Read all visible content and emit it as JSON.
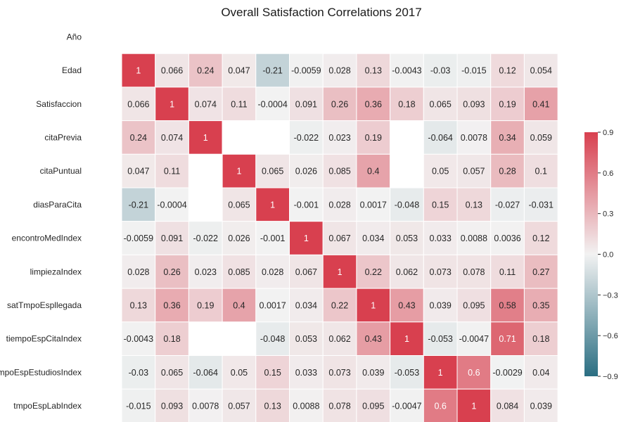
{
  "chart_data": {
    "type": "heatmap",
    "title": "Overall Satisfaction Correlations 2017",
    "rows": [
      "Año",
      "Edad",
      "Satisfaccion",
      "citaPrevia",
      "citaPuntual",
      "diasParaCita",
      "encontroMedIndex",
      "limpiezaIndex",
      "satTmpoEspllegada",
      "tiempoEspCitaIndex",
      "tmpoEspEstudiosIndex",
      "tmpoEspLabIndex"
    ],
    "values": [
      [
        null,
        null,
        null,
        null,
        null,
        null,
        null,
        null,
        null,
        null,
        null,
        null,
        null
      ],
      [
        1,
        0.066,
        0.24,
        0.047,
        -0.21,
        -0.0059,
        0.028,
        0.13,
        -0.0043,
        -0.03,
        -0.015,
        0.12,
        0.054
      ],
      [
        0.066,
        1,
        0.074,
        0.11,
        -0.0004,
        0.091,
        0.26,
        0.36,
        0.18,
        0.065,
        0.093,
        0.19,
        0.41
      ],
      [
        0.24,
        0.074,
        1,
        null,
        null,
        -0.022,
        0.023,
        0.19,
        null,
        -0.064,
        0.0078,
        0.34,
        0.059
      ],
      [
        0.047,
        0.11,
        null,
        1,
        0.065,
        0.026,
        0.085,
        0.4,
        null,
        0.05,
        0.057,
        0.28,
        0.1
      ],
      [
        -0.21,
        -0.0004,
        null,
        0.065,
        1,
        -0.001,
        0.028,
        0.0017,
        -0.048,
        0.15,
        0.13,
        -0.027,
        -0.031
      ],
      [
        -0.0059,
        0.091,
        -0.022,
        0.026,
        -0.001,
        1,
        0.067,
        0.034,
        0.053,
        0.033,
        0.0088,
        0.0036,
        0.12
      ],
      [
        0.028,
        0.26,
        0.023,
        0.085,
        0.028,
        0.067,
        1,
        0.22,
        0.062,
        0.073,
        0.078,
        0.11,
        0.27
      ],
      [
        0.13,
        0.36,
        0.19,
        0.4,
        0.0017,
        0.034,
        0.22,
        1,
        0.43,
        0.039,
        0.095,
        0.58,
        0.35
      ],
      [
        -0.0043,
        0.18,
        null,
        null,
        -0.048,
        0.053,
        0.062,
        0.43,
        1,
        -0.053,
        -0.0047,
        0.71,
        0.18
      ],
      [
        -0.03,
        0.065,
        -0.064,
        0.05,
        0.15,
        0.033,
        0.073,
        0.039,
        -0.053,
        1,
        0.6,
        -0.0029,
        0.04
      ],
      [
        -0.015,
        0.093,
        0.0078,
        0.057,
        0.13,
        0.0088,
        0.078,
        0.095,
        -0.0047,
        0.6,
        1,
        0.084,
        0.039
      ]
    ],
    "colorbar": {
      "ticks": [
        0.9,
        0.6,
        0.3,
        0.0,
        -0.3,
        -0.6,
        -0.9
      ],
      "tick_labels": [
        "0.9",
        "0.6",
        "0.3",
        "0.0",
        "−0.3",
        "−0.6",
        "−0.9"
      ],
      "range": [
        -0.9,
        0.9
      ]
    },
    "colors": {
      "negative": "#2a6e82",
      "center": "#f2f2f2",
      "positive": "#d8404f",
      "missing": "#ffffff"
    }
  }
}
